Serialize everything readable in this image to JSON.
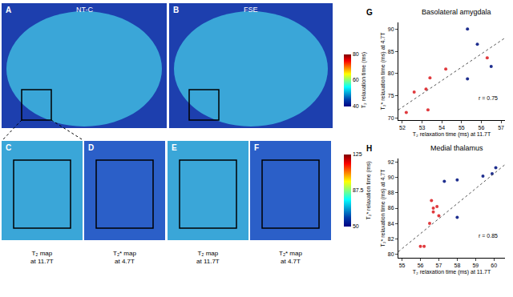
{
  "chart_data": [
    {
      "type": "scatter",
      "label": "G",
      "title": "Basolateral amygdala",
      "x_label": "T₂ relaxation time (ms) at 11.7T",
      "y_label": "T₂* relaxation time (ms) at 4.7T",
      "xlim": [
        51.8,
        57.2
      ],
      "xticks": [
        52,
        53,
        54,
        55,
        56,
        57
      ],
      "ylim": [
        69.5,
        91.5
      ],
      "yticks": [
        70,
        75,
        80,
        85,
        90
      ],
      "annotation": "r = 0.75",
      "marker": "circle",
      "line_style": "dotted",
      "series": [
        {
          "color": "#e03a3e",
          "x": [
            52.2,
            52.6,
            53.2,
            53.4,
            53.3,
            54.2,
            56.3
          ],
          "values": [
            71.2,
            75.8,
            76.5,
            79,
            71.8,
            81,
            83.5
          ]
        },
        {
          "color": "#1f2f8f",
          "x": [
            55.3,
            55.8,
            55.3,
            56.5
          ],
          "values": [
            90,
            86.6,
            78.8,
            81.6
          ]
        }
      ],
      "fit": {
        "x": [
          51.8,
          57.2
        ],
        "values": [
          71.8,
          88
        ]
      }
    },
    {
      "type": "scatter",
      "label": "H",
      "title": "Medial thalamus",
      "x_label": "T₂ relaxation time (ms) at 11.7T",
      "y_label": "T₂* relaxation time (ms) at 4.7T",
      "xlim": [
        54.8,
        60.6
      ],
      "xticks": [
        55,
        56,
        57,
        58,
        59,
        60
      ],
      "ylim": [
        79.5,
        92.5
      ],
      "yticks": [
        80,
        82,
        84,
        86,
        88,
        90,
        92
      ],
      "annotation": "r = 0.85",
      "marker": "circle",
      "line_style": "dotted",
      "series": [
        {
          "color": "#e03a3e",
          "x": [
            56.0,
            56.2,
            56.5,
            56.6,
            56.7,
            56.9,
            57.0,
            56.7
          ],
          "values": [
            81,
            81,
            84,
            87,
            86,
            86.2,
            85,
            85.5
          ]
        },
        {
          "color": "#1f2f8f",
          "x": [
            57.3,
            58.0,
            58.0,
            59.4,
            59.9,
            60.1
          ],
          "values": [
            89.5,
            89.7,
            84.8,
            90.2,
            90.5,
            91.3
          ]
        }
      ],
      "fit": {
        "x": [
          54.8,
          60.6
        ],
        "values": [
          80.3,
          91.7
        ]
      }
    }
  ],
  "images": {
    "top": [
      {
        "label": "A",
        "title": "NT-C"
      },
      {
        "label": "B",
        "title": "FSE"
      }
    ],
    "bottom": [
      {
        "label": "C",
        "caption": [
          "T₂ map",
          "at 11.7T"
        ]
      },
      {
        "label": "D",
        "caption": [
          "T₂* map",
          "at 4.7T"
        ]
      },
      {
        "label": "E",
        "caption": [
          "T₂ map",
          "at 11.7T"
        ]
      },
      {
        "label": "F",
        "caption": [
          "T₂* map",
          "at 4.7T"
        ]
      }
    ],
    "colorbars": [
      {
        "title": "T₂ relaxation time (ms)",
        "range": [
          40,
          80
        ],
        "ticks": [
          40,
          60,
          80
        ],
        "color": "Jet"
      },
      {
        "title": "T₂* relaxation time (ms)",
        "range": [
          50,
          125
        ],
        "ticks": [
          50,
          87.5,
          125
        ],
        "color": "Jet"
      }
    ]
  }
}
